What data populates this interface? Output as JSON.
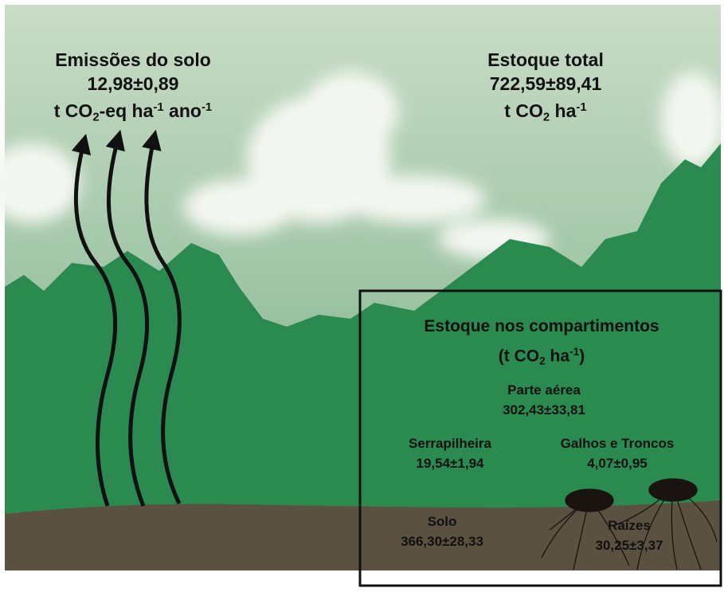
{
  "emissions": {
    "title": "Emissões do solo",
    "value": "12,98±0,89",
    "unit": [
      {
        "text": "t CO"
      },
      {
        "sub": "2"
      },
      {
        "text": "-eq ha"
      },
      {
        "sup": "-1"
      },
      {
        "text": " ano"
      },
      {
        "sup": "-1"
      }
    ]
  },
  "total_stock": {
    "title": "Estoque total",
    "value": "722,59±89,41",
    "unit": [
      {
        "text": "t CO"
      },
      {
        "sub": "2"
      },
      {
        "text": " ha"
      },
      {
        "sup": "-1"
      }
    ]
  },
  "compartments": {
    "title": "Estoque nos compartimentos",
    "unit": [
      {
        "text": "(t CO"
      },
      {
        "sub": "2"
      },
      {
        "text": " ha"
      },
      {
        "sup": "-1"
      },
      {
        "text": ")"
      }
    ],
    "items": [
      {
        "label": "Parte aérea",
        "value": "302,43±33,81"
      },
      {
        "label": "Serrapilheira",
        "value": "19,54±1,94"
      },
      {
        "label": "Galhos e Troncos",
        "value": "4,07±0,95"
      },
      {
        "label": "Solo",
        "value": "366,30±28,33"
      },
      {
        "label": "Raízes",
        "value": "30,25±3,37"
      }
    ]
  }
}
